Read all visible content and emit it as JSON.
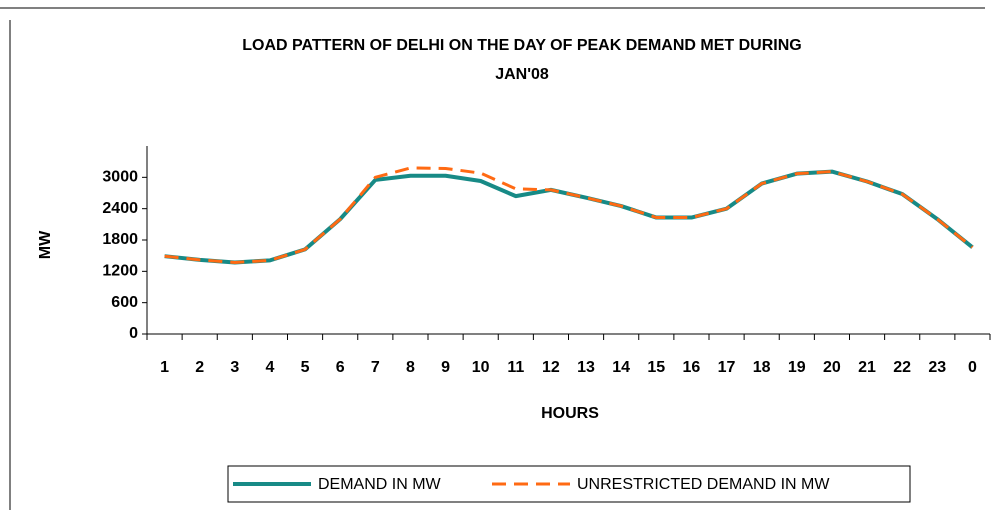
{
  "chart_data": {
    "type": "line",
    "title": [
      "LOAD PATTERN OF DELHI ON THE DAY OF PEAK DEMAND MET DURING",
      "JAN'08"
    ],
    "x_label": "HOURS",
    "y_label": "MW",
    "categories": [
      "1",
      "2",
      "3",
      "4",
      "5",
      "6",
      "7",
      "8",
      "9",
      "10",
      "11",
      "12",
      "13",
      "14",
      "15",
      "16",
      "17",
      "18",
      "19",
      "20",
      "21",
      "22",
      "23",
      "0"
    ],
    "series": [
      {
        "name": "DEMAND IN MW",
        "color": "#178a86",
        "style": "solid",
        "values": [
          1490,
          1420,
          1370,
          1410,
          1620,
          2200,
          2950,
          3030,
          3030,
          2930,
          2640,
          2760,
          2610,
          2450,
          2230,
          2230,
          2400,
          2880,
          3070,
          3110,
          2920,
          2680,
          2200,
          1660
        ]
      },
      {
        "name": "UNRESTRICTED DEMAND IN MW",
        "color": "#ff6a13",
        "style": "dashed",
        "values": [
          1490,
          1420,
          1370,
          1410,
          1620,
          2200,
          3000,
          3180,
          3170,
          3080,
          2780,
          2760,
          2610,
          2450,
          2230,
          2230,
          2400,
          2880,
          3070,
          3110,
          2920,
          2680,
          2200,
          1660
        ]
      }
    ],
    "ylim": [
      0,
      3600
    ],
    "yticks": [
      0,
      600,
      1200,
      1800,
      2400,
      3000
    ],
    "grid": false,
    "legend": "bottom"
  }
}
